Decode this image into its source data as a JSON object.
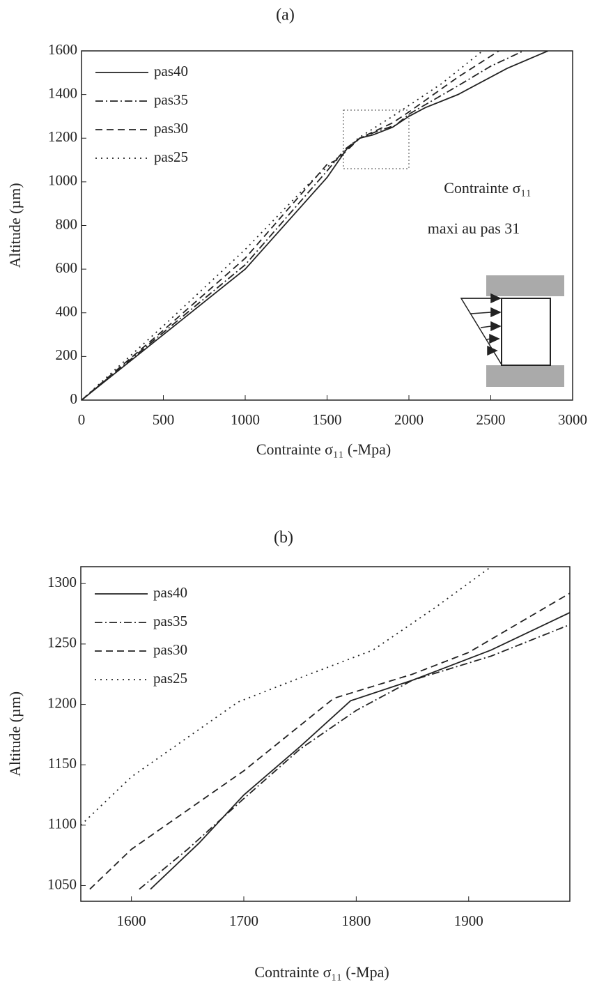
{
  "chart_data": [
    {
      "type": "line",
      "title": "(a)",
      "xlabel": "Contrainte σ₁₁ (-Mpa)",
      "ylabel": "Altitude (µm)",
      "annotations": [
        "Contrainte σ₁₁",
        "maxi au pas 31"
      ],
      "xlim": [
        0,
        3000
      ],
      "ylim": [
        0,
        1600
      ],
      "xticks": [
        0,
        500,
        1000,
        1500,
        2000,
        2500,
        3000
      ],
      "yticks": [
        0,
        200,
        400,
        600,
        800,
        1000,
        1200,
        1400,
        1600
      ],
      "grid": false,
      "legend": "upper left",
      "series": [
        {
          "name": "pas40",
          "color": "#222222",
          "linestyle": "solid",
          "x": [
            0,
            500,
            1000,
            1500,
            1620,
            1700,
            1780,
            1900,
            2000,
            2100,
            2300,
            2600,
            2850
          ],
          "values": [
            0,
            300,
            600,
            1020,
            1150,
            1200,
            1215,
            1250,
            1300,
            1340,
            1400,
            1520,
            1600
          ]
        },
        {
          "name": "pas35",
          "color": "#222222",
          "linestyle": "dashdot",
          "x": [
            0,
            500,
            1000,
            1500,
            1610,
            1700,
            1800,
            1920,
            2000,
            2300,
            2500,
            2700
          ],
          "values": [
            0,
            310,
            620,
            1050,
            1150,
            1200,
            1230,
            1260,
            1310,
            1440,
            1530,
            1600
          ]
        },
        {
          "name": "pas30",
          "color": "#222222",
          "linestyle": "dashed",
          "x": [
            0,
            500,
            1000,
            1500,
            1560,
            1700,
            1900,
            2000,
            2300,
            2550
          ],
          "values": [
            0,
            320,
            650,
            1080,
            1100,
            1200,
            1270,
            1320,
            1480,
            1600
          ]
        },
        {
          "name": "pas25",
          "color": "#222222",
          "linestyle": "dotted",
          "x": [
            0,
            500,
            1000,
            1400,
            1550,
            1690,
            1900,
            2000,
            2200,
            2450
          ],
          "values": [
            0,
            340,
            690,
            1000,
            1100,
            1200,
            1300,
            1350,
            1450,
            1600
          ]
        }
      ]
    },
    {
      "type": "line",
      "title": "(b)",
      "xlabel": "Contrainte σ₁₁ (-Mpa)",
      "ylabel": "Altitude (µm)",
      "xlim": [
        1555,
        1990
      ],
      "ylim": [
        1037,
        1314
      ],
      "xticks": [
        1600,
        1700,
        1800,
        1900
      ],
      "yticks": [
        1050,
        1100,
        1150,
        1200,
        1250,
        1300
      ],
      "grid": false,
      "legend": "upper left",
      "series": [
        {
          "name": "pas40",
          "color": "#222222",
          "linestyle": "solid",
          "x": [
            1617,
            1660,
            1700,
            1750,
            1795,
            1850,
            1920,
            1990
          ],
          "values": [
            1047,
            1085,
            1125,
            1165,
            1203,
            1220,
            1245,
            1276
          ]
        },
        {
          "name": "pas35",
          "color": "#222222",
          "linestyle": "dashdot",
          "x": [
            1607,
            1650,
            1700,
            1750,
            1800,
            1850,
            1920,
            1990
          ],
          "values": [
            1047,
            1080,
            1122,
            1163,
            1195,
            1220,
            1240,
            1266
          ]
        },
        {
          "name": "pas30",
          "color": "#222222",
          "linestyle": "dashed",
          "x": [
            1563,
            1600,
            1700,
            1780,
            1850,
            1900,
            1990
          ],
          "values": [
            1047,
            1080,
            1145,
            1205,
            1225,
            1243,
            1292
          ]
        },
        {
          "name": "pas25",
          "color": "#222222",
          "linestyle": "dotted",
          "x": [
            1555,
            1600,
            1695,
            1750,
            1815,
            1870,
            1920
          ],
          "values": [
            1100,
            1140,
            1202,
            1222,
            1245,
            1280,
            1314
          ]
        }
      ]
    }
  ]
}
